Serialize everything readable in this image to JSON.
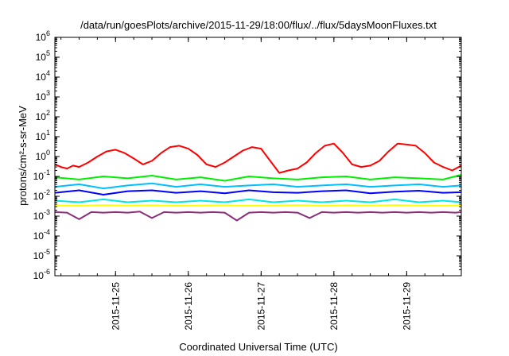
{
  "chart_data": {
    "type": "line",
    "title": "/data/run/goesPlots/archive/2015-11-29/18:00/flux/../flux/5daysMoonFluxes.txt",
    "xlabel": "Coordinated Universal Time (UTC)",
    "ylabel": "protons/cm²-s-sr-MeV",
    "y_scale": "log",
    "ylim": [
      1e-06,
      1000000.0
    ],
    "xlim_days": [
      "2015-11-24T04:00",
      "2015-11-29T18:00"
    ],
    "x_ticks": [
      "2015-11-25",
      "2015-11-26",
      "2015-11-27",
      "2015-11-28",
      "2015-11-29"
    ],
    "y_ticks": [
      "10^-6",
      "10^-5",
      "10^-4",
      "10^-3",
      "10^-2",
      "10^-1",
      "10^0",
      "10^1",
      "10^2",
      "10^3",
      "10^4",
      "10^5",
      "10^6"
    ],
    "grid": false,
    "series": [
      {
        "color": "#ff0000",
        "x": [
          "2015-11-24T04:00",
          "2015-11-24T06:00",
          "2015-11-24T08:00",
          "2015-11-24T10:00",
          "2015-11-24T12:00",
          "2015-11-24T15:00",
          "2015-11-24T18:00",
          "2015-11-24T21:00",
          "2015-11-25T00:00",
          "2015-11-25T03:00",
          "2015-11-25T06:00",
          "2015-11-25T09:00",
          "2015-11-25T12:00",
          "2015-11-25T15:00",
          "2015-11-25T18:00",
          "2015-11-25T21:00",
          "2015-11-26T00:00",
          "2015-11-26T03:00",
          "2015-11-26T06:00",
          "2015-11-26T09:00",
          "2015-11-26T12:00",
          "2015-11-26T15:00",
          "2015-11-26T18:00",
          "2015-11-26T21:00",
          "2015-11-27T00:00",
          "2015-11-27T03:00",
          "2015-11-27T06:00",
          "2015-11-27T09:00",
          "2015-11-27T12:00",
          "2015-11-27T15:00",
          "2015-11-27T18:00",
          "2015-11-27T21:00",
          "2015-11-28T00:00",
          "2015-11-28T03:00",
          "2015-11-28T06:00",
          "2015-11-28T09:00",
          "2015-11-28T12:00",
          "2015-11-28T15:00",
          "2015-11-28T18:00",
          "2015-11-28T21:00",
          "2015-11-29T00:00",
          "2015-11-29T03:00",
          "2015-11-29T06:00",
          "2015-11-29T09:00",
          "2015-11-29T12:00",
          "2015-11-29T15:00",
          "2015-11-29T18:00"
        ],
        "y": [
          0.4,
          0.3,
          0.25,
          0.35,
          0.3,
          0.5,
          1.0,
          1.8,
          2.2,
          1.5,
          0.8,
          0.4,
          0.6,
          1.5,
          3.0,
          3.5,
          2.5,
          1.2,
          0.4,
          0.3,
          0.5,
          1.0,
          2.0,
          3.0,
          2.5,
          0.6,
          0.15,
          0.2,
          0.25,
          0.5,
          1.5,
          3.5,
          4.5,
          1.5,
          0.4,
          0.3,
          0.35,
          0.6,
          1.8,
          4.5,
          4.0,
          3.5,
          1.5,
          0.5,
          0.3,
          0.2,
          0.35
        ]
      },
      {
        "color": "#00ee00",
        "x": [
          "2015-11-24T04:00",
          "2015-11-24T12:00",
          "2015-11-24T20:00",
          "2015-11-25T04:00",
          "2015-11-25T12:00",
          "2015-11-25T20:00",
          "2015-11-26T04:00",
          "2015-11-26T12:00",
          "2015-11-26T20:00",
          "2015-11-27T04:00",
          "2015-11-27T12:00",
          "2015-11-27T20:00",
          "2015-11-28T04:00",
          "2015-11-28T12:00",
          "2015-11-28T20:00",
          "2015-11-29T04:00",
          "2015-11-29T12:00",
          "2015-11-29T18:00"
        ],
        "y": [
          0.09,
          0.07,
          0.1,
          0.08,
          0.11,
          0.07,
          0.09,
          0.06,
          0.1,
          0.08,
          0.07,
          0.09,
          0.1,
          0.07,
          0.09,
          0.08,
          0.07,
          0.12
        ]
      },
      {
        "color": "#00bfff",
        "x": [
          "2015-11-24T04:00",
          "2015-11-24T12:00",
          "2015-11-24T20:00",
          "2015-11-25T04:00",
          "2015-11-25T12:00",
          "2015-11-25T20:00",
          "2015-11-26T04:00",
          "2015-11-26T12:00",
          "2015-11-26T20:00",
          "2015-11-27T04:00",
          "2015-11-27T12:00",
          "2015-11-27T20:00",
          "2015-11-28T04:00",
          "2015-11-28T12:00",
          "2015-11-28T20:00",
          "2015-11-29T04:00",
          "2015-11-29T12:00",
          "2015-11-29T18:00"
        ],
        "y": [
          0.03,
          0.04,
          0.025,
          0.035,
          0.045,
          0.03,
          0.04,
          0.03,
          0.035,
          0.04,
          0.03,
          0.035,
          0.04,
          0.03,
          0.035,
          0.04,
          0.03,
          0.035
        ]
      },
      {
        "color": "#0000ff",
        "x": [
          "2015-11-24T04:00",
          "2015-11-24T12:00",
          "2015-11-24T20:00",
          "2015-11-25T04:00",
          "2015-11-25T12:00",
          "2015-11-25T20:00",
          "2015-11-26T04:00",
          "2015-11-26T12:00",
          "2015-11-26T20:00",
          "2015-11-27T04:00",
          "2015-11-27T12:00",
          "2015-11-27T20:00",
          "2015-11-28T04:00",
          "2015-11-28T12:00",
          "2015-11-28T20:00",
          "2015-11-29T04:00",
          "2015-11-29T12:00",
          "2015-11-29T18:00"
        ],
        "y": [
          0.015,
          0.02,
          0.012,
          0.018,
          0.02,
          0.015,
          0.018,
          0.014,
          0.02,
          0.016,
          0.015,
          0.018,
          0.02,
          0.014,
          0.017,
          0.019,
          0.015,
          0.016
        ]
      },
      {
        "color": "#00e5e5",
        "x": [
          "2015-11-24T04:00",
          "2015-11-24T12:00",
          "2015-11-24T20:00",
          "2015-11-25T04:00",
          "2015-11-25T12:00",
          "2015-11-25T20:00",
          "2015-11-26T04:00",
          "2015-11-26T12:00",
          "2015-11-26T20:00",
          "2015-11-27T04:00",
          "2015-11-27T12:00",
          "2015-11-27T20:00",
          "2015-11-28T04:00",
          "2015-11-28T12:00",
          "2015-11-28T20:00",
          "2015-11-29T04:00",
          "2015-11-29T12:00",
          "2015-11-29T18:00"
        ],
        "y": [
          0.006,
          0.005,
          0.007,
          0.005,
          0.006,
          0.005,
          0.006,
          0.005,
          0.007,
          0.005,
          0.006,
          0.005,
          0.006,
          0.005,
          0.007,
          0.005,
          0.006,
          0.005
        ]
      },
      {
        "color": "#ffff00",
        "x": [
          "2015-11-24T04:00",
          "2015-11-24T12:00",
          "2015-11-24T20:00",
          "2015-11-25T04:00",
          "2015-11-25T12:00",
          "2015-11-25T20:00",
          "2015-11-26T04:00",
          "2015-11-26T12:00",
          "2015-11-26T20:00",
          "2015-11-27T04:00",
          "2015-11-27T12:00",
          "2015-11-27T20:00",
          "2015-11-28T04:00",
          "2015-11-28T12:00",
          "2015-11-28T20:00",
          "2015-11-29T04:00",
          "2015-11-29T12:00",
          "2015-11-29T18:00"
        ],
        "y": [
          0.0035,
          0.0033,
          0.0036,
          0.0034,
          0.0035,
          0.0033,
          0.0034,
          0.0035,
          0.0033,
          0.0034,
          0.0036,
          0.0033,
          0.0035,
          0.0034,
          0.0036,
          0.0034,
          0.0033,
          0.0035
        ]
      },
      {
        "color": "#8b2e7a",
        "x": [
          "2015-11-24T04:00",
          "2015-11-24T08:00",
          "2015-11-24T12:00",
          "2015-11-24T16:00",
          "2015-11-24T20:00",
          "2015-11-25T00:00",
          "2015-11-25T04:00",
          "2015-11-25T08:00",
          "2015-11-25T12:00",
          "2015-11-25T16:00",
          "2015-11-25T20:00",
          "2015-11-26T00:00",
          "2015-11-26T04:00",
          "2015-11-26T08:00",
          "2015-11-26T12:00",
          "2015-11-26T16:00",
          "2015-11-26T20:00",
          "2015-11-27T00:00",
          "2015-11-27T04:00",
          "2015-11-27T08:00",
          "2015-11-27T12:00",
          "2015-11-27T16:00",
          "2015-11-27T20:00",
          "2015-11-28T00:00",
          "2015-11-28T04:00",
          "2015-11-28T08:00",
          "2015-11-28T12:00",
          "2015-11-28T16:00",
          "2015-11-28T20:00",
          "2015-11-29T00:00",
          "2015-11-29T04:00",
          "2015-11-29T08:00",
          "2015-11-29T12:00",
          "2015-11-29T16:00",
          "2015-11-29T18:00"
        ],
        "y": [
          0.0016,
          0.0015,
          0.0007,
          0.0016,
          0.0015,
          0.0016,
          0.0015,
          0.0017,
          0.0008,
          0.0016,
          0.0015,
          0.0016,
          0.0015,
          0.0016,
          0.0015,
          0.0006,
          0.0015,
          0.0016,
          0.0015,
          0.0016,
          0.0015,
          0.0008,
          0.0016,
          0.0015,
          0.0016,
          0.0015,
          0.0016,
          0.0015,
          0.0016,
          0.0015,
          0.0016,
          0.0015,
          0.0016,
          0.0015,
          0.0016
        ]
      }
    ]
  }
}
